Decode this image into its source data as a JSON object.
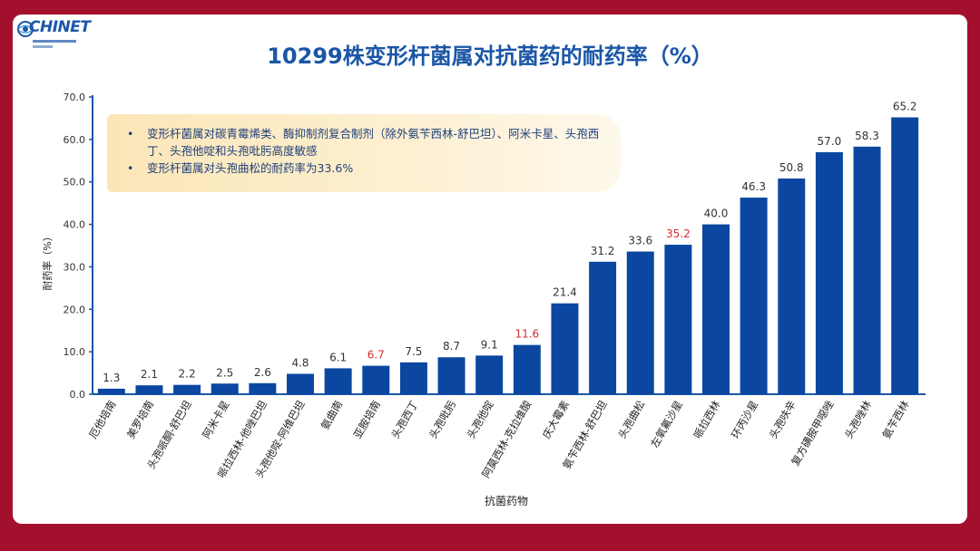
{
  "logo": {
    "text": "CHINET"
  },
  "slide_title": "10299株变形杆菌属对抗菌药的耐药率（%）",
  "callout": {
    "items": [
      "变形杆菌属对碳青霉烯类、酶抑制剂复合制剂（除外氨苄西林-舒巴坦）、阿米卡星、头孢西丁、头孢他啶和头孢吡肟高度敏感",
      "变形杆菌属对头孢曲松的耐药率为33.6%"
    ]
  },
  "colors": {
    "bar": "#0b47a0",
    "highlight_label": "#d42b2b",
    "label": "#333333",
    "background": "#a3102d"
  },
  "chart_data": {
    "type": "bar",
    "title": "10299株变形杆菌属对抗菌药的耐药率（%）",
    "xlabel": "抗菌药物",
    "ylabel": "耐药率（%）",
    "ylim": [
      0,
      70
    ],
    "yticks": [
      "0.0",
      "10.0",
      "20.0",
      "30.0",
      "40.0",
      "50.0",
      "60.0",
      "70.0"
    ],
    "categories": [
      "厄他培南",
      "美罗培南",
      "头孢哌酮-舒巴坦",
      "阿米卡星",
      "哌拉西林-他唑巴坦",
      "头孢他啶-阿维巴坦",
      "氨曲南",
      "亚胺培南",
      "头孢西丁",
      "头孢吡肟",
      "头孢他啶",
      "阿莫西林-克拉维酸",
      "庆大霉素",
      "氨苄西林-舒巴坦",
      "头孢曲松",
      "左氧氟沙星",
      "哌拉西林",
      "环丙沙星",
      "头孢呋辛",
      "复方磺胺甲噁唑",
      "头孢唑林",
      "氨苄西林"
    ],
    "values": [
      1.3,
      2.1,
      2.2,
      2.5,
      2.6,
      4.8,
      6.1,
      6.7,
      7.5,
      8.7,
      9.1,
      11.6,
      21.4,
      31.2,
      33.6,
      35.2,
      40.0,
      46.3,
      50.8,
      57.0,
      58.3,
      65.2
    ],
    "labels": [
      "1.3",
      "2.1",
      "2.2",
      "2.5",
      "2.6",
      "4.8",
      "6.1",
      "6.7",
      "7.5",
      "8.7",
      "9.1",
      "11.6",
      "21.4",
      "31.2",
      "33.6",
      "35.2",
      "40.0",
      "46.3",
      "50.8",
      "57.0",
      "58.3",
      "65.2"
    ],
    "highlighted_labels": [
      7,
      11,
      15
    ],
    "grid": false,
    "legend": "none"
  }
}
